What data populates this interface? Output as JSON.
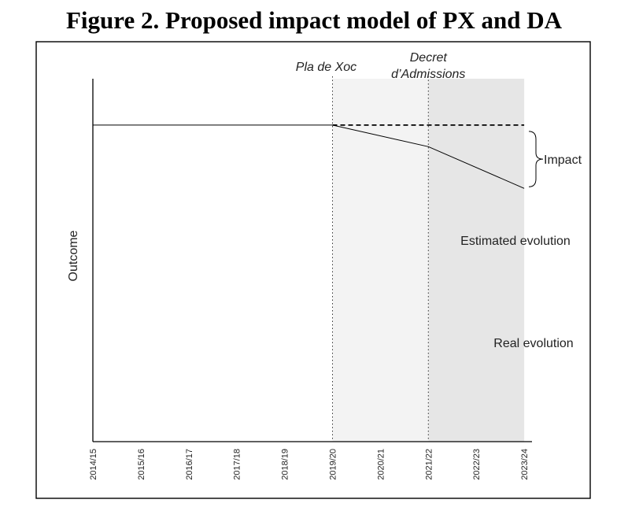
{
  "figure": {
    "title": "Figure 2. Proposed impact model of PX and DA"
  },
  "chart_data": {
    "type": "line",
    "ylabel": "Outcome",
    "xlabel": "",
    "categories": [
      "2014/15",
      "2015/16",
      "2016/17",
      "2017/18",
      "2018/19",
      "2019/20",
      "2020/21",
      "2021/22",
      "2022/23",
      "2023/24"
    ],
    "series": [
      {
        "name": "Real evolution",
        "style": "solid",
        "points": [
          [
            "2014/15",
            1.0
          ],
          [
            "2019/20",
            1.0
          ],
          [
            "2021/22",
            0.72
          ],
          [
            "2023/24",
            0.18
          ]
        ]
      },
      {
        "name": "Estimated evolution",
        "style": "dashed",
        "points": [
          [
            "2019/20",
            1.0
          ],
          [
            "2023/24",
            1.0
          ]
        ]
      }
    ],
    "events": [
      {
        "label": "Pla de Xoc",
        "at": "2019/20",
        "shade_until": "2021/22",
        "color": "#f3f3f3"
      },
      {
        "label": "Decret d’Admissions",
        "label_lines": [
          "Decret",
          "d’Admissions"
        ],
        "at": "2021/22",
        "shade_until": "2023/24",
        "color": "#e6e6e6"
      }
    ],
    "annotations": [
      {
        "label": "Impact",
        "type": "brace"
      }
    ],
    "ylim": [
      -3.1,
      1.6
    ],
    "grid": false
  }
}
